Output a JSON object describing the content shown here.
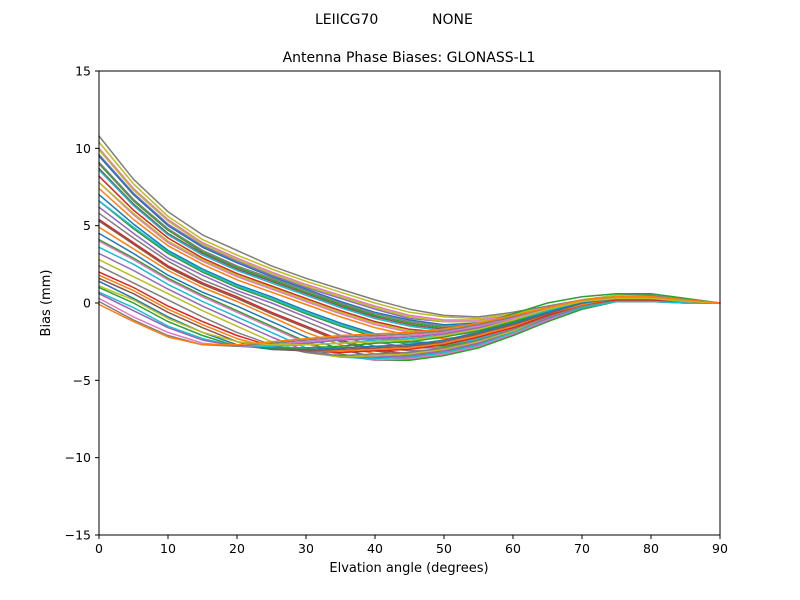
{
  "header": {
    "suptitle_left": "LEIICG70",
    "suptitle_right": "NONE"
  },
  "chart_data": {
    "type": "line",
    "title": "Antenna Phase Biases: GLONASS-L1",
    "xlabel": "Elvation angle (degrees)",
    "ylabel": "Bias (mm)",
    "xlim": [
      0,
      90
    ],
    "ylim": [
      -15,
      15
    ],
    "grid": false,
    "legend": "none",
    "xticks": [
      0,
      10,
      20,
      30,
      40,
      50,
      60,
      70,
      80,
      90
    ],
    "xtick_labels": [
      "0",
      "10",
      "20",
      "30",
      "40",
      "50",
      "60",
      "70",
      "80",
      "90"
    ],
    "yticks": [
      -15,
      -10,
      -5,
      0,
      5,
      10,
      15
    ],
    "ytick_labels": [
      "−15",
      "−10",
      "−5",
      "0",
      "5",
      "10",
      "15"
    ],
    "frame_color": "#000000",
    "line_width": 1.5,
    "x": [
      0,
      5,
      10,
      15,
      20,
      25,
      30,
      35,
      40,
      45,
      50,
      55,
      60,
      65,
      70,
      75,
      80,
      85,
      90
    ],
    "series": [
      {
        "color": "#7f7f7f",
        "values": [
          10.8,
          8.0,
          5.9,
          4.4,
          3.4,
          2.4,
          1.6,
          0.9,
          0.2,
          -0.4,
          -0.8,
          -0.9,
          -0.6,
          -0.2,
          0.2,
          0.5,
          0.5,
          0.2,
          0.0
        ]
      },
      {
        "color": "#bcbd22",
        "values": [
          10.4,
          7.7,
          5.6,
          4.1,
          3.1,
          2.2,
          1.4,
          0.7,
          0.0,
          -0.6,
          -0.9,
          -1.0,
          -0.7,
          -0.3,
          0.2,
          0.5,
          0.4,
          0.2,
          0.0
        ]
      },
      {
        "color": "#e377c2",
        "values": [
          10.0,
          7.4,
          5.4,
          3.9,
          2.9,
          2.0,
          1.2,
          0.5,
          -0.2,
          -0.8,
          -1.1,
          -1.1,
          -0.8,
          -0.4,
          0.1,
          0.4,
          0.4,
          0.2,
          0.0
        ]
      },
      {
        "color": "#9467bd",
        "values": [
          9.6,
          7.1,
          5.1,
          3.7,
          2.7,
          1.8,
          1.0,
          0.3,
          -0.4,
          -1.0,
          -1.2,
          -1.2,
          -0.9,
          -0.4,
          0.1,
          0.4,
          0.4,
          0.2,
          0.0
        ]
      },
      {
        "color": "#bcbd22",
        "values": [
          9.9,
          7.3,
          5.3,
          3.8,
          2.8,
          1.9,
          1.1,
          0.4,
          -0.3,
          -0.9,
          -1.2,
          -1.2,
          -0.9,
          -0.4,
          0.1,
          0.4,
          0.3,
          0.2,
          0.0
        ]
      },
      {
        "color": "#1f77b4",
        "values": [
          9.5,
          7.0,
          5.0,
          3.6,
          2.6,
          1.7,
          0.9,
          0.1,
          -0.6,
          -1.1,
          -1.4,
          -1.3,
          -1.0,
          -0.5,
          0.1,
          0.4,
          0.3,
          0.2,
          0.0
        ]
      },
      {
        "color": "#2ca02c",
        "values": [
          9.0,
          6.6,
          4.7,
          3.3,
          2.3,
          1.5,
          0.7,
          -0.1,
          -0.8,
          -1.3,
          -1.6,
          -1.4,
          -0.7,
          0.0,
          0.4,
          0.6,
          0.6,
          0.3,
          0.0
        ]
      },
      {
        "color": "#7f7f7f",
        "values": [
          9.1,
          6.7,
          4.8,
          3.4,
          2.4,
          1.6,
          0.8,
          0.0,
          -0.7,
          -1.2,
          -1.5,
          -1.4,
          -1.1,
          -0.5,
          0.1,
          0.4,
          0.3,
          0.2,
          0.0
        ]
      },
      {
        "color": "#8c564b",
        "values": [
          8.7,
          6.4,
          4.5,
          3.2,
          2.2,
          1.4,
          0.6,
          -0.2,
          -0.9,
          -1.4,
          -1.7,
          -1.6,
          -1.2,
          -0.6,
          0.0,
          0.4,
          0.3,
          0.2,
          0.0
        ]
      },
      {
        "color": "#17becf",
        "values": [
          8.6,
          6.3,
          4.4,
          3.1,
          2.1,
          1.3,
          0.5,
          -0.3,
          -1.0,
          -1.5,
          -1.8,
          -1.7,
          -1.3,
          -0.5,
          0.0,
          0.3,
          0.3,
          0.1,
          0.0
        ]
      },
      {
        "color": "#d62728",
        "values": [
          8.2,
          6.0,
          4.2,
          2.9,
          1.9,
          1.1,
          0.3,
          -0.5,
          -1.2,
          -1.7,
          -1.9,
          -1.8,
          -1.4,
          -0.6,
          0.0,
          0.3,
          0.3,
          0.1,
          0.0
        ]
      },
      {
        "color": "#e377c2",
        "values": [
          7.8,
          5.7,
          3.9,
          2.7,
          1.7,
          0.9,
          0.1,
          -0.7,
          -1.4,
          -1.9,
          -2.1,
          -1.9,
          -1.5,
          -0.7,
          0.0,
          0.3,
          0.3,
          0.1,
          0.0
        ]
      },
      {
        "color": "#ff7f0e",
        "values": [
          7.4,
          5.4,
          3.7,
          2.5,
          1.5,
          0.7,
          -0.1,
          -0.9,
          -1.6,
          -2.1,
          -2.3,
          -2.1,
          -1.6,
          -0.8,
          -0.1,
          0.3,
          0.3,
          0.1,
          0.0
        ]
      },
      {
        "color": "#1f77b4",
        "values": [
          7.0,
          5.1,
          3.4,
          2.2,
          1.2,
          0.4,
          -0.5,
          -1.3,
          -2.0,
          -2.5,
          -2.6,
          -2.3,
          -1.7,
          -0.9,
          -0.1,
          0.2,
          0.2,
          0.1,
          0.0
        ]
      },
      {
        "color": "#bcbd22",
        "values": [
          7.8,
          5.8,
          4.0,
          2.8,
          1.8,
          1.0,
          0.2,
          -0.6,
          -1.3,
          -1.8,
          -2.0,
          -1.9,
          -1.4,
          -0.7,
          0.0,
          0.3,
          0.3,
          0.1,
          0.0
        ]
      },
      {
        "color": "#2ca02c",
        "values": [
          6.6,
          4.8,
          3.2,
          2.0,
          1.0,
          0.2,
          -0.7,
          -1.5,
          -2.2,
          -2.7,
          -2.8,
          -2.4,
          -1.8,
          -0.9,
          -0.2,
          0.2,
          0.2,
          0.1,
          0.0
        ]
      },
      {
        "color": "#9467bd",
        "values": [
          6.2,
          4.5,
          2.9,
          1.8,
          0.8,
          0.0,
          -0.9,
          -1.8,
          -2.5,
          -2.9,
          -2.9,
          -2.5,
          -1.8,
          -1.0,
          -0.2,
          0.2,
          0.2,
          0.1,
          0.0
        ]
      },
      {
        "color": "#17becf",
        "values": [
          6.6,
          4.9,
          3.3,
          2.1,
          1.1,
          0.3,
          -0.6,
          -1.4,
          -2.1,
          -2.6,
          -2.7,
          -2.3,
          -1.7,
          -0.8,
          -0.1,
          0.2,
          0.2,
          0.1,
          0.0
        ]
      },
      {
        "color": "#7f7f7f",
        "values": [
          5.8,
          4.2,
          2.7,
          1.5,
          0.6,
          -0.3,
          -1.2,
          -2.1,
          -2.8,
          -3.1,
          -3.0,
          -2.6,
          -1.9,
          -1.0,
          -0.2,
          0.2,
          0.2,
          0.1,
          0.0
        ]
      },
      {
        "color": "#d62728",
        "values": [
          5.4,
          3.9,
          2.4,
          1.3,
          0.4,
          -0.6,
          -1.5,
          -2.4,
          -3.0,
          -3.3,
          -3.1,
          -2.7,
          -1.9,
          -1.1,
          -0.3,
          0.1,
          0.2,
          0.1,
          0.0
        ]
      },
      {
        "color": "#8c564b",
        "values": [
          5.3,
          3.8,
          2.3,
          1.2,
          0.3,
          -0.7,
          -1.6,
          -2.5,
          -3.1,
          -3.4,
          -3.2,
          -2.7,
          -2.0,
          -1.1,
          -0.3,
          0.1,
          0.1,
          0.1,
          0.0
        ]
      },
      {
        "color": "#ff7f0e",
        "values": [
          4.9,
          3.5,
          2.1,
          1.0,
          0.1,
          -0.9,
          -1.9,
          -2.7,
          -3.3,
          -3.5,
          -3.3,
          -2.8,
          -2.0,
          -1.2,
          -0.3,
          0.1,
          0.1,
          0.1,
          0.0
        ]
      },
      {
        "color": "#1f77b4",
        "values": [
          4.5,
          3.2,
          1.8,
          0.7,
          -0.2,
          -1.2,
          -2.2,
          -3.0,
          -3.5,
          -3.6,
          -3.3,
          -2.8,
          -2.1,
          -1.2,
          -0.4,
          0.1,
          0.1,
          0.0,
          0.0
        ]
      },
      {
        "color": "#2ca02c",
        "values": [
          4.1,
          2.9,
          1.6,
          0.5,
          -0.5,
          -1.5,
          -2.5,
          -3.3,
          -3.7,
          -3.7,
          -3.4,
          -2.9,
          -2.1,
          -1.2,
          -0.4,
          0.1,
          0.1,
          0.0,
          0.0
        ]
      },
      {
        "color": "#e377c2",
        "values": [
          4.0,
          2.8,
          1.5,
          0.4,
          -0.6,
          -1.6,
          -2.6,
          -3.4,
          -3.7,
          -3.6,
          -3.3,
          -2.8,
          -2.0,
          -1.1,
          -0.3,
          0.1,
          0.1,
          0.0,
          0.0
        ]
      },
      {
        "color": "#17becf",
        "values": [
          3.6,
          2.5,
          1.2,
          0.1,
          -0.9,
          -1.9,
          -2.9,
          -3.5,
          -3.6,
          -3.5,
          -3.2,
          -2.7,
          -1.9,
          -1.0,
          -0.3,
          0.1,
          0.1,
          0.0,
          0.0
        ]
      },
      {
        "color": "#9467bd",
        "values": [
          3.2,
          2.1,
          0.9,
          -0.2,
          -1.2,
          -2.2,
          -3.1,
          -3.5,
          -3.5,
          -3.4,
          -3.1,
          -2.6,
          -1.8,
          -1.0,
          -0.2,
          0.2,
          0.2,
          0.1,
          0.0
        ]
      },
      {
        "color": "#bcbd22",
        "values": [
          2.8,
          1.7,
          0.6,
          -0.5,
          -1.5,
          -2.5,
          -3.2,
          -3.5,
          -3.4,
          -3.3,
          -3.0,
          -2.5,
          -1.8,
          -0.9,
          -0.2,
          0.2,
          0.2,
          0.1,
          0.0
        ]
      },
      {
        "color": "#7f7f7f",
        "values": [
          2.4,
          1.3,
          0.2,
          -0.9,
          -1.9,
          -2.7,
          -3.2,
          -3.4,
          -3.3,
          -3.2,
          -2.9,
          -2.4,
          -1.7,
          -0.9,
          -0.2,
          0.2,
          0.2,
          0.1,
          0.0
        ]
      },
      {
        "color": "#d62728",
        "values": [
          2.0,
          1.0,
          -0.2,
          -1.2,
          -2.1,
          -2.8,
          -3.1,
          -3.2,
          -3.1,
          -3.0,
          -2.7,
          -2.2,
          -1.6,
          -0.8,
          -0.1,
          0.2,
          0.2,
          0.1,
          0.0
        ]
      },
      {
        "color": "#ff7f0e",
        "values": [
          1.8,
          0.8,
          -0.4,
          -1.4,
          -2.3,
          -2.9,
          -3.1,
          -3.1,
          -3.0,
          -2.9,
          -2.6,
          -2.1,
          -1.5,
          -0.7,
          -0.1,
          0.3,
          0.3,
          0.1,
          0.0
        ]
      },
      {
        "color": "#8c564b",
        "values": [
          1.6,
          0.6,
          -0.6,
          -1.6,
          -2.5,
          -3.0,
          -3.1,
          -3.0,
          -2.9,
          -2.8,
          -2.5,
          -2.0,
          -1.4,
          -0.7,
          0.0,
          0.3,
          0.3,
          0.1,
          0.0
        ]
      },
      {
        "color": "#1f77b4",
        "values": [
          1.4,
          0.3,
          -0.9,
          -1.9,
          -2.7,
          -3.0,
          -3.0,
          -2.9,
          -2.8,
          -2.7,
          -2.4,
          -1.9,
          -1.3,
          -0.6,
          0.0,
          0.3,
          0.3,
          0.1,
          0.0
        ]
      },
      {
        "color": "#2ca02c",
        "values": [
          1.0,
          0.0,
          -1.2,
          -2.1,
          -2.8,
          -2.9,
          -2.9,
          -2.8,
          -2.6,
          -2.5,
          -2.2,
          -1.8,
          -1.2,
          -0.5,
          0.1,
          0.3,
          0.3,
          0.2,
          0.0
        ]
      },
      {
        "color": "#17becf",
        "values": [
          0.7,
          -0.3,
          -1.5,
          -2.3,
          -2.8,
          -2.8,
          -2.7,
          -2.6,
          -2.4,
          -2.3,
          -2.1,
          -1.7,
          -1.1,
          -0.5,
          0.1,
          0.3,
          0.3,
          0.2,
          0.0
        ]
      },
      {
        "color": "#9467bd",
        "values": [
          0.6,
          -0.5,
          -1.6,
          -2.4,
          -2.8,
          -2.7,
          -2.6,
          -2.4,
          -2.3,
          -2.2,
          -2.0,
          -1.6,
          -1.0,
          -0.4,
          0.1,
          0.4,
          0.3,
          0.2,
          0.0
        ]
      },
      {
        "color": "#e377c2",
        "values": [
          0.3,
          -0.9,
          -1.9,
          -2.6,
          -2.8,
          -2.7,
          -2.5,
          -2.3,
          -2.2,
          -2.1,
          -1.9,
          -1.5,
          -1.0,
          -0.4,
          0.2,
          0.4,
          0.3,
          0.2,
          0.0
        ]
      },
      {
        "color": "#7f7f7f",
        "values": [
          0.1,
          -1.1,
          -2.1,
          -2.7,
          -2.8,
          -2.6,
          -2.4,
          -2.2,
          -2.1,
          -2.0,
          -1.8,
          -1.4,
          -0.9,
          -0.3,
          0.2,
          0.4,
          0.3,
          0.2,
          0.0
        ]
      },
      {
        "color": "#bcbd22",
        "values": [
          1.1,
          0.2,
          -1.0,
          -1.9,
          -2.5,
          -2.7,
          -2.7,
          -2.6,
          -2.5,
          -2.4,
          -2.1,
          -1.7,
          -1.1,
          -0.4,
          0.1,
          0.3,
          0.3,
          0.1,
          0.0
        ]
      },
      {
        "color": "#ff7f0e",
        "values": [
          -0.1,
          -1.2,
          -2.2,
          -2.7,
          -2.7,
          -2.5,
          -2.3,
          -2.1,
          -2.0,
          -1.9,
          -1.7,
          -1.3,
          -0.8,
          -0.3,
          0.2,
          0.4,
          0.4,
          0.2,
          0.0
        ]
      }
    ]
  }
}
